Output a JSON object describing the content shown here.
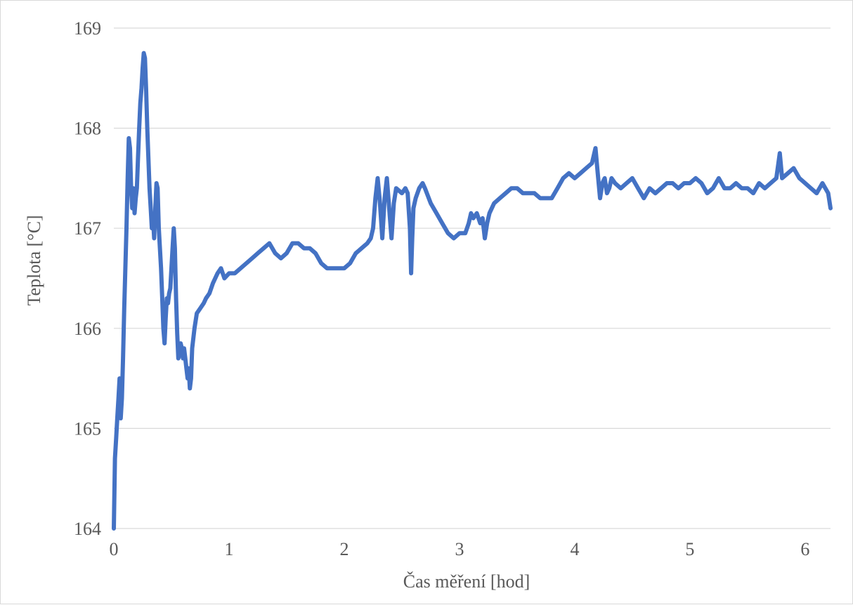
{
  "chart_data": {
    "type": "line",
    "xlabel": "Čas měření [hod]",
    "ylabel": "Teplota [°C]",
    "xlim": [
      0,
      6.22
    ],
    "ylim": [
      164,
      169
    ],
    "xticks": [
      "0",
      "1",
      "2",
      "3",
      "4",
      "5",
      "6"
    ],
    "yticks": [
      "164",
      "165",
      "166",
      "167",
      "168",
      "169"
    ],
    "grid": "horizontal",
    "legend": "none",
    "series": [
      {
        "color": "#4472C4",
        "points": [
          [
            0.0,
            164.0
          ],
          [
            0.01,
            164.7
          ],
          [
            0.02,
            164.9
          ],
          [
            0.03,
            165.1
          ],
          [
            0.04,
            165.3
          ],
          [
            0.05,
            165.5
          ],
          [
            0.06,
            165.1
          ],
          [
            0.07,
            165.3
          ],
          [
            0.08,
            165.7
          ],
          [
            0.09,
            166.2
          ],
          [
            0.1,
            166.6
          ],
          [
            0.11,
            167.0
          ],
          [
            0.12,
            167.5
          ],
          [
            0.13,
            167.9
          ],
          [
            0.14,
            167.8
          ],
          [
            0.15,
            167.4
          ],
          [
            0.16,
            167.2
          ],
          [
            0.17,
            167.4
          ],
          [
            0.18,
            167.15
          ],
          [
            0.19,
            167.3
          ],
          [
            0.2,
            167.4
          ],
          [
            0.21,
            167.7
          ],
          [
            0.22,
            168.0
          ],
          [
            0.23,
            168.25
          ],
          [
            0.24,
            168.4
          ],
          [
            0.25,
            168.6
          ],
          [
            0.26,
            168.75
          ],
          [
            0.27,
            168.7
          ],
          [
            0.28,
            168.4
          ],
          [
            0.29,
            168.0
          ],
          [
            0.3,
            167.7
          ],
          [
            0.31,
            167.4
          ],
          [
            0.32,
            167.2
          ],
          [
            0.33,
            167.0
          ],
          [
            0.34,
            167.1
          ],
          [
            0.35,
            166.9
          ],
          [
            0.36,
            167.2
          ],
          [
            0.37,
            167.45
          ],
          [
            0.38,
            167.4
          ],
          [
            0.39,
            167.0
          ],
          [
            0.4,
            166.8
          ],
          [
            0.41,
            166.6
          ],
          [
            0.42,
            166.3
          ],
          [
            0.43,
            166.0
          ],
          [
            0.44,
            165.85
          ],
          [
            0.45,
            166.1
          ],
          [
            0.46,
            166.3
          ],
          [
            0.47,
            166.25
          ],
          [
            0.48,
            166.35
          ],
          [
            0.49,
            166.4
          ],
          [
            0.5,
            166.6
          ],
          [
            0.51,
            166.8
          ],
          [
            0.52,
            167.0
          ],
          [
            0.53,
            166.8
          ],
          [
            0.54,
            166.3
          ],
          [
            0.55,
            165.95
          ],
          [
            0.56,
            165.7
          ],
          [
            0.57,
            165.75
          ],
          [
            0.58,
            165.85
          ],
          [
            0.59,
            165.8
          ],
          [
            0.6,
            165.7
          ],
          [
            0.61,
            165.8
          ],
          [
            0.62,
            165.7
          ],
          [
            0.63,
            165.6
          ],
          [
            0.64,
            165.5
          ],
          [
            0.65,
            165.6
          ],
          [
            0.66,
            165.4
          ],
          [
            0.67,
            165.5
          ],
          [
            0.68,
            165.8
          ],
          [
            0.7,
            166.0
          ],
          [
            0.72,
            166.15
          ],
          [
            0.75,
            166.2
          ],
          [
            0.78,
            166.25
          ],
          [
            0.8,
            166.3
          ],
          [
            0.83,
            166.35
          ],
          [
            0.86,
            166.45
          ],
          [
            0.9,
            166.55
          ],
          [
            0.93,
            166.6
          ],
          [
            0.96,
            166.5
          ],
          [
            1.0,
            166.55
          ],
          [
            1.05,
            166.55
          ],
          [
            1.1,
            166.6
          ],
          [
            1.15,
            166.65
          ],
          [
            1.2,
            166.7
          ],
          [
            1.25,
            166.75
          ],
          [
            1.3,
            166.8
          ],
          [
            1.35,
            166.85
          ],
          [
            1.4,
            166.75
          ],
          [
            1.45,
            166.7
          ],
          [
            1.5,
            166.75
          ],
          [
            1.55,
            166.85
          ],
          [
            1.6,
            166.85
          ],
          [
            1.65,
            166.8
          ],
          [
            1.7,
            166.8
          ],
          [
            1.75,
            166.75
          ],
          [
            1.8,
            166.65
          ],
          [
            1.85,
            166.6
          ],
          [
            1.9,
            166.6
          ],
          [
            1.95,
            166.6
          ],
          [
            2.0,
            166.6
          ],
          [
            2.05,
            166.65
          ],
          [
            2.1,
            166.75
          ],
          [
            2.15,
            166.8
          ],
          [
            2.2,
            166.85
          ],
          [
            2.23,
            166.9
          ],
          [
            2.25,
            167.0
          ],
          [
            2.27,
            167.3
          ],
          [
            2.29,
            167.5
          ],
          [
            2.31,
            167.25
          ],
          [
            2.33,
            166.9
          ],
          [
            2.35,
            167.3
          ],
          [
            2.37,
            167.5
          ],
          [
            2.39,
            167.2
          ],
          [
            2.41,
            166.9
          ],
          [
            2.43,
            167.25
          ],
          [
            2.45,
            167.4
          ],
          [
            2.5,
            167.35
          ],
          [
            2.53,
            167.4
          ],
          [
            2.55,
            167.35
          ],
          [
            2.57,
            167.0
          ],
          [
            2.58,
            166.55
          ],
          [
            2.59,
            166.9
          ],
          [
            2.6,
            167.2
          ],
          [
            2.62,
            167.3
          ],
          [
            2.65,
            167.4
          ],
          [
            2.68,
            167.45
          ],
          [
            2.7,
            167.4
          ],
          [
            2.75,
            167.25
          ],
          [
            2.8,
            167.15
          ],
          [
            2.85,
            167.05
          ],
          [
            2.9,
            166.95
          ],
          [
            2.95,
            166.9
          ],
          [
            3.0,
            166.95
          ],
          [
            3.05,
            166.95
          ],
          [
            3.08,
            167.05
          ],
          [
            3.1,
            167.15
          ],
          [
            3.12,
            167.1
          ],
          [
            3.15,
            167.15
          ],
          [
            3.18,
            167.05
          ],
          [
            3.2,
            167.1
          ],
          [
            3.22,
            166.9
          ],
          [
            3.24,
            167.05
          ],
          [
            3.26,
            167.15
          ],
          [
            3.3,
            167.25
          ],
          [
            3.35,
            167.3
          ],
          [
            3.4,
            167.35
          ],
          [
            3.45,
            167.4
          ],
          [
            3.5,
            167.4
          ],
          [
            3.55,
            167.35
          ],
          [
            3.6,
            167.35
          ],
          [
            3.65,
            167.35
          ],
          [
            3.7,
            167.3
          ],
          [
            3.75,
            167.3
          ],
          [
            3.8,
            167.3
          ],
          [
            3.85,
            167.4
          ],
          [
            3.9,
            167.5
          ],
          [
            3.95,
            167.55
          ],
          [
            4.0,
            167.5
          ],
          [
            4.05,
            167.55
          ],
          [
            4.1,
            167.6
          ],
          [
            4.15,
            167.65
          ],
          [
            4.18,
            167.8
          ],
          [
            4.2,
            167.55
          ],
          [
            4.22,
            167.3
          ],
          [
            4.24,
            167.45
          ],
          [
            4.26,
            167.5
          ],
          [
            4.28,
            167.35
          ],
          [
            4.3,
            167.4
          ],
          [
            4.32,
            167.5
          ],
          [
            4.35,
            167.45
          ],
          [
            4.4,
            167.4
          ],
          [
            4.45,
            167.45
          ],
          [
            4.5,
            167.5
          ],
          [
            4.55,
            167.4
          ],
          [
            4.6,
            167.3
          ],
          [
            4.65,
            167.4
          ],
          [
            4.7,
            167.35
          ],
          [
            4.75,
            167.4
          ],
          [
            4.8,
            167.45
          ],
          [
            4.85,
            167.45
          ],
          [
            4.9,
            167.4
          ],
          [
            4.95,
            167.45
          ],
          [
            5.0,
            167.45
          ],
          [
            5.05,
            167.5
          ],
          [
            5.1,
            167.45
          ],
          [
            5.15,
            167.35
          ],
          [
            5.2,
            167.4
          ],
          [
            5.25,
            167.5
          ],
          [
            5.3,
            167.4
          ],
          [
            5.35,
            167.4
          ],
          [
            5.4,
            167.45
          ],
          [
            5.45,
            167.4
          ],
          [
            5.5,
            167.4
          ],
          [
            5.55,
            167.35
          ],
          [
            5.6,
            167.45
          ],
          [
            5.65,
            167.4
          ],
          [
            5.7,
            167.45
          ],
          [
            5.75,
            167.5
          ],
          [
            5.78,
            167.75
          ],
          [
            5.8,
            167.5
          ],
          [
            5.85,
            167.55
          ],
          [
            5.9,
            167.6
          ],
          [
            5.95,
            167.5
          ],
          [
            6.0,
            167.45
          ],
          [
            6.05,
            167.4
          ],
          [
            6.1,
            167.35
          ],
          [
            6.15,
            167.45
          ],
          [
            6.2,
            167.35
          ],
          [
            6.22,
            167.2
          ]
        ]
      }
    ]
  }
}
